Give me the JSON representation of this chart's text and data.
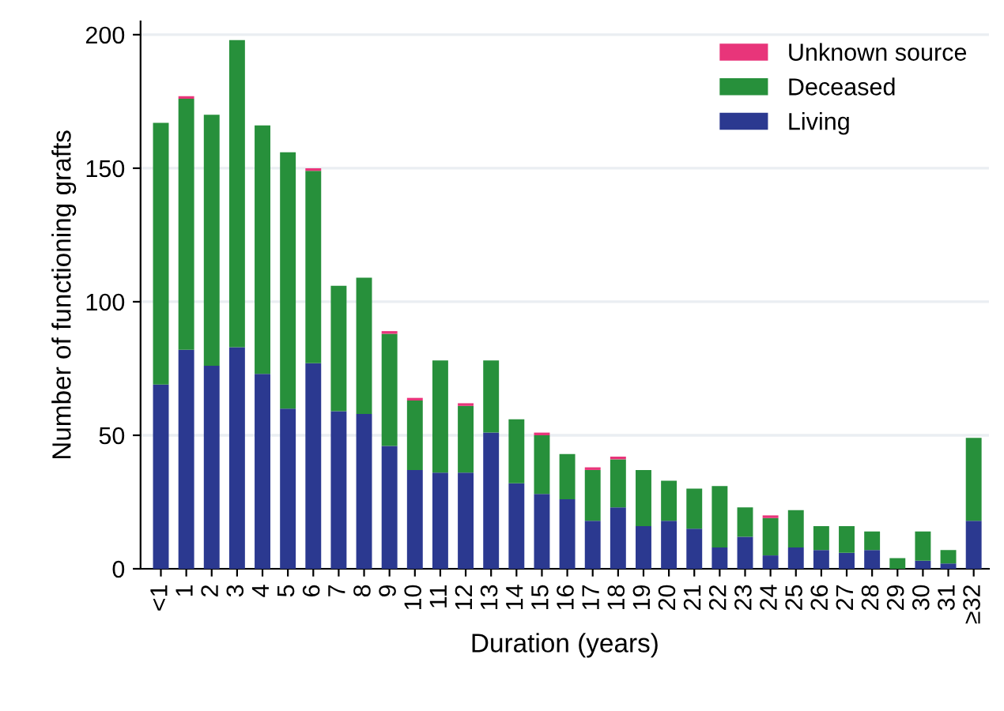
{
  "chart_data": {
    "type": "bar",
    "stacked": true,
    "xlabel": "Duration (years)",
    "ylabel": "Number of functioning grafts",
    "categories": [
      "<1",
      "1",
      "2",
      "3",
      "4",
      "5",
      "6",
      "7",
      "8",
      "9",
      "10",
      "11",
      "12",
      "13",
      "14",
      "15",
      "16",
      "17",
      "18",
      "19",
      "20",
      "21",
      "22",
      "23",
      "24",
      "25",
      "26",
      "27",
      "28",
      "29",
      "30",
      "31",
      "≥32"
    ],
    "series": [
      {
        "name": "Living",
        "color": "#2b3990",
        "values": [
          69,
          82,
          76,
          83,
          73,
          60,
          77,
          59,
          58,
          46,
          37,
          36,
          36,
          51,
          32,
          28,
          26,
          18,
          23,
          16,
          18,
          15,
          8,
          12,
          5,
          8,
          7,
          6,
          7,
          0,
          3,
          2,
          18
        ]
      },
      {
        "name": "Deceased",
        "color": "#27903b",
        "values": [
          98,
          94,
          94,
          115,
          93,
          96,
          72,
          47,
          51,
          42,
          26,
          42,
          25,
          27,
          24,
          22,
          17,
          19,
          18,
          21,
          15,
          15,
          23,
          11,
          14,
          14,
          9,
          10,
          7,
          4,
          11,
          5,
          31
        ]
      },
      {
        "name": "Unknown source",
        "color": "#e8357a",
        "values": [
          0,
          1,
          0,
          0,
          0,
          0,
          1,
          0,
          0,
          1,
          1,
          0,
          1,
          0,
          0,
          1,
          0,
          1,
          1,
          0,
          0,
          0,
          0,
          0,
          1,
          0,
          0,
          0,
          0,
          0,
          0,
          0,
          0
        ]
      }
    ],
    "ylim": [
      0,
      205
    ],
    "yticks": [
      0,
      50,
      100,
      150,
      200
    ],
    "grid": "y",
    "legend": "top right"
  }
}
